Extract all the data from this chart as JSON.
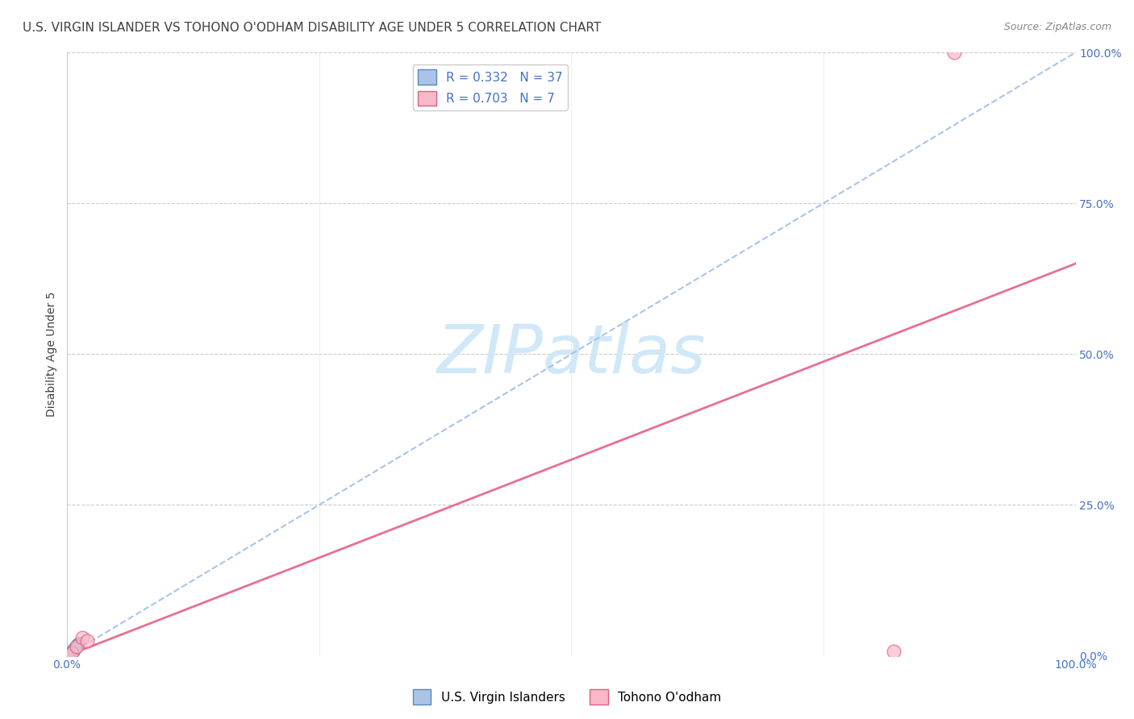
{
  "title": "U.S. VIRGIN ISLANDER VS TOHONO O'ODHAM DISABILITY AGE UNDER 5 CORRELATION CHART",
  "source": "Source: ZipAtlas.com",
  "ylabel": "Disability Age Under 5",
  "watermark": "ZIPatlas",
  "xlim": [
    0.0,
    100.0
  ],
  "ylim": [
    0.0,
    100.0
  ],
  "x_ticks_shown": [
    0.0,
    100.0
  ],
  "y_ticks_right": [
    0.0,
    25.0,
    50.0,
    75.0,
    100.0
  ],
  "series1": {
    "name": "U.S. Virgin Islanders",
    "R": 0.332,
    "N": 37,
    "color": "#aac4e8",
    "edge_color": "#5588bb",
    "marker_size": 10,
    "line_color": "#aac4e8",
    "line_style": "--",
    "trend_x0": 0.0,
    "trend_y0": 0.0,
    "trend_x1": 100.0,
    "trend_y1": 100.0
  },
  "series2": {
    "name": "Tohono O'odham",
    "R": 0.703,
    "N": 7,
    "color": "#f9b8c8",
    "edge_color": "#e06080",
    "marker_size": 12,
    "line_color": "#e87090",
    "line_style": "-",
    "trend_x0": 0.0,
    "trend_y0": 0.0,
    "trend_x1": 100.0,
    "trend_y1": 65.0
  },
  "scatter1_x": [
    0.0,
    0.3,
    0.5,
    0.6,
    0.8,
    1.0,
    0.4,
    0.7,
    0.9,
    0.5,
    1.1,
    0.6,
    0.3,
    0.8,
    1.2,
    0.4,
    0.7,
    0.5,
    0.9,
    0.6,
    0.3,
    1.0,
    0.8,
    0.5,
    0.7,
    0.4,
    1.1,
    0.6,
    0.9,
    0.3,
    0.7,
    1.0,
    0.5,
    0.8,
    0.4,
    0.6,
    0.9
  ],
  "scatter1_y": [
    0.0,
    0.4,
    0.8,
    1.2,
    1.6,
    2.0,
    0.3,
    0.9,
    1.4,
    0.6,
    1.9,
    0.7,
    0.2,
    1.1,
    2.2,
    0.5,
    1.0,
    0.4,
    1.5,
    0.8,
    0.3,
    1.7,
    1.3,
    0.6,
    1.1,
    0.4,
    2.1,
    0.9,
    1.6,
    0.2,
    0.8,
    1.8,
    0.5,
    1.4,
    0.3,
    0.7,
    1.3
  ],
  "scatter2_x": [
    0.0,
    0.5,
    1.0,
    1.5,
    82.0,
    88.0,
    2.0
  ],
  "scatter2_y": [
    0.0,
    0.5,
    1.5,
    3.0,
    0.8,
    100.0,
    2.5
  ],
  "legend_blue_color": "#4472c4",
  "right_axis_color": "#4472c4",
  "title_color": "#404040",
  "source_color": "#888888",
  "background_color": "#ffffff",
  "plot_bg_color": "#ffffff",
  "grid_color": "#cccccc",
  "watermark_color": "#d0e8f8",
  "title_fontsize": 11,
  "source_fontsize": 9,
  "axis_label_fontsize": 10,
  "tick_fontsize": 10,
  "legend_fontsize": 11,
  "watermark_fontsize": 60
}
